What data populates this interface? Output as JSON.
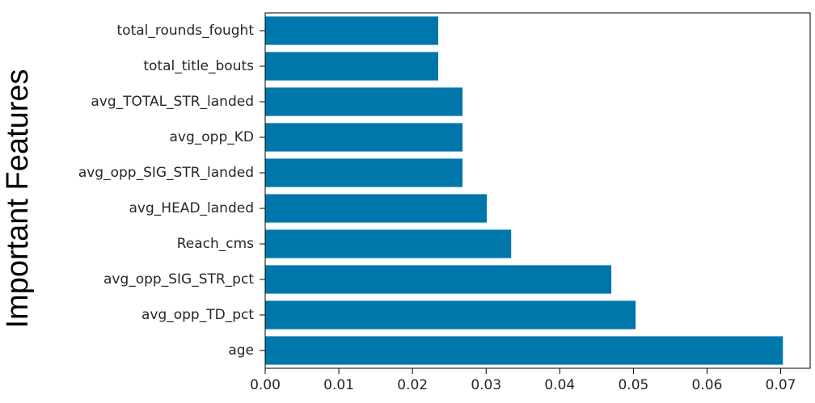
{
  "chart_data": {
    "type": "bar",
    "orientation": "horizontal",
    "title": "",
    "xlabel": "",
    "ylabel": "Important Features",
    "categories": [
      "total_rounds_fought",
      "total_title_bouts",
      "avg_TOTAL_STR_landed",
      "avg_opp_KD",
      "avg_opp_SIG_STR_landed",
      "avg_HEAD_landed",
      "Reach_cms",
      "avg_opp_SIG_STR_pct",
      "avg_opp_TD_pct",
      "age"
    ],
    "values": [
      0.0235,
      0.0235,
      0.0268,
      0.0268,
      0.0268,
      0.0301,
      0.0334,
      0.047,
      0.0503,
      0.0703
    ],
    "xlim": [
      0,
      0.074
    ],
    "xticks": [
      "0.00",
      "0.01",
      "0.02",
      "0.03",
      "0.04",
      "0.05",
      "0.06",
      "0.07"
    ],
    "bar_color": "#0077aa",
    "grid": false,
    "legend": "none"
  }
}
